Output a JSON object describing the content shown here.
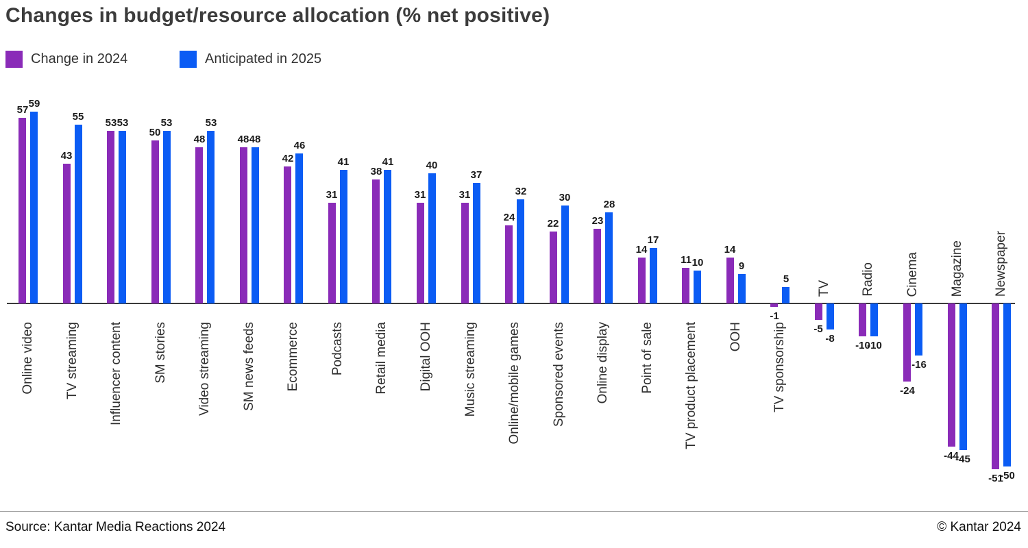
{
  "header": {
    "title": "Changes in budget/resource allocation (% net positive)"
  },
  "chart_data": {
    "type": "bar",
    "title": "Changes in budget/resource allocation (% net positive)",
    "grid": false,
    "legend_position": "top-left",
    "ylim": [
      -55,
      62
    ],
    "categories": [
      "Online video",
      "TV streaming",
      "Influencer content",
      "SM stories",
      "Video streaming",
      "SM news feeds",
      "Ecommerce",
      "Podcasts",
      "Retail media",
      "Digital OOH",
      "Music streaming",
      "Online/mobile games",
      "Sponsored events",
      "Online display",
      "Point of sale",
      "TV product placement",
      "OOH",
      "TV sponsorship",
      "TV",
      "Radio",
      "Cinema",
      "Magazine",
      "Newspaper"
    ],
    "series": [
      {
        "name": "Change in 2024",
        "color": "#8A2BB8",
        "values": [
          57,
          43,
          53,
          50,
          48,
          48,
          42,
          31,
          38,
          31,
          31,
          24,
          22,
          23,
          14,
          11,
          14,
          -1,
          -5,
          -10,
          -24,
          -44,
          -51
        ]
      },
      {
        "name": "Anticipated in 2025",
        "color": "#0B5CF4",
        "values": [
          59,
          55,
          53,
          53,
          53,
          48,
          46,
          41,
          41,
          40,
          37,
          32,
          30,
          28,
          17,
          10,
          9,
          5,
          -8,
          -10,
          -16,
          -45,
          -50
        ]
      }
    ]
  },
  "footer": {
    "source": "Source: Kantar Media Reactions 2024",
    "copyright": "© Kantar 2024"
  }
}
